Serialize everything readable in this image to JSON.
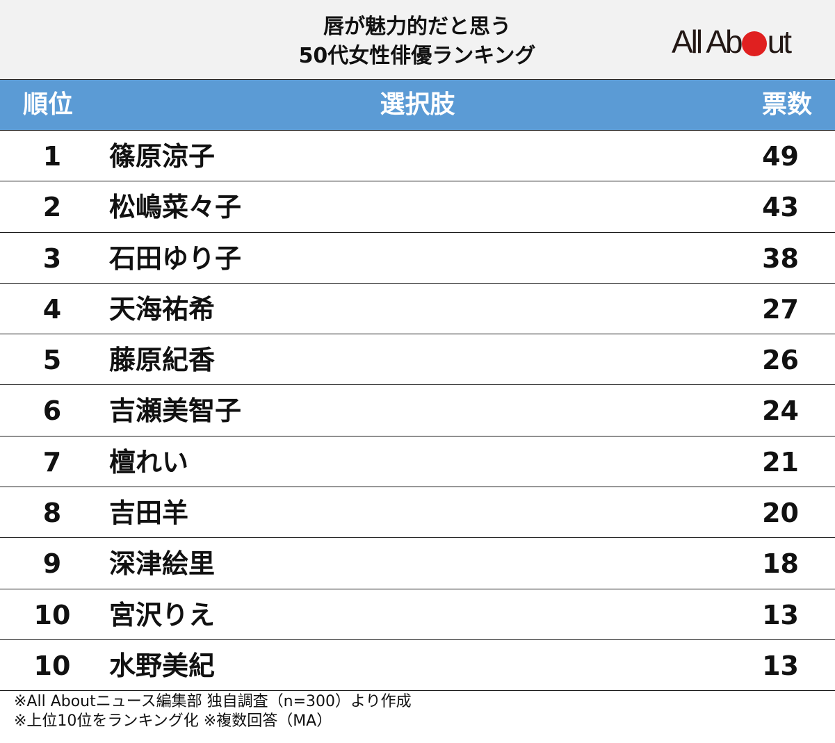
{
  "header": {
    "title_line1": "唇が魅力的だと思う",
    "title_line2": "50代女性俳優ランキング",
    "logo": {
      "text_before": "All Ab",
      "text_after": "ut",
      "dot_color": "#e02020"
    }
  },
  "table": {
    "columns": {
      "rank": "順位",
      "choice": "選択肢",
      "votes": "票数"
    },
    "header_color": "#5b9bd5",
    "rows": [
      {
        "rank": "1",
        "name": "篠原涼子",
        "votes": "49"
      },
      {
        "rank": "2",
        "name": "松嶋菜々子",
        "votes": "43"
      },
      {
        "rank": "3",
        "name": "石田ゆり子",
        "votes": "38"
      },
      {
        "rank": "4",
        "name": "天海祐希",
        "votes": "27"
      },
      {
        "rank": "5",
        "name": "藤原紀香",
        "votes": "26"
      },
      {
        "rank": "6",
        "name": "吉瀬美智子",
        "votes": "24"
      },
      {
        "rank": "7",
        "name": "檀れい",
        "votes": "21"
      },
      {
        "rank": "8",
        "name": "吉田羊",
        "votes": "20"
      },
      {
        "rank": "9",
        "name": "深津絵里",
        "votes": "18"
      },
      {
        "rank": "10",
        "name": "宮沢りえ",
        "votes": "13"
      },
      {
        "rank": "10",
        "name": "水野美紀",
        "votes": "13"
      }
    ]
  },
  "notes": {
    "line1": "※All Aboutニュース編集部 独自調査（n=300）より作成",
    "line2": "※上位10位をランキング化 ※複数回答（MA）"
  },
  "chart_data": {
    "type": "table",
    "title": "唇が魅力的だと思う 50代女性俳優ランキング",
    "columns": [
      "順位",
      "選択肢",
      "票数"
    ],
    "categories": [
      "篠原涼子",
      "松嶋菜々子",
      "石田ゆり子",
      "天海祐希",
      "藤原紀香",
      "吉瀬美智子",
      "檀れい",
      "吉田羊",
      "深津絵里",
      "宮沢りえ",
      "水野美紀"
    ],
    "ranks": [
      1,
      2,
      3,
      4,
      5,
      6,
      7,
      8,
      9,
      10,
      10
    ],
    "values": [
      49,
      43,
      38,
      27,
      26,
      24,
      21,
      20,
      18,
      13,
      13
    ],
    "ylabel": "票数",
    "notes": [
      "※All Aboutニュース編集部 独自調査（n=300）より作成",
      "※上位10位をランキング化 ※複数回答（MA）"
    ]
  }
}
